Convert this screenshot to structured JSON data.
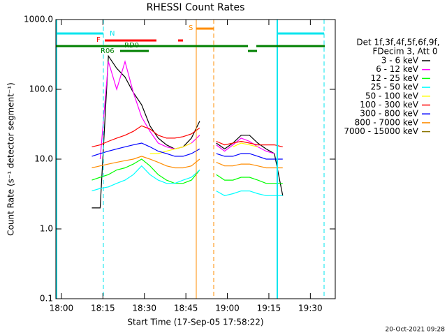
{
  "chart_data": {
    "type": "line",
    "title": "RHESSI Count Rates",
    "xlabel": "Start Time (17-Sep-05 17:58:22)",
    "ylabel": "Count Rate (s⁻¹ detector segment⁻¹)",
    "log_y": true,
    "x": [
      "18:11",
      "18:14",
      "18:17",
      "18:20",
      "18:23",
      "18:26",
      "18:29",
      "18:32",
      "18:35",
      "18:38",
      "18:41",
      "18:44",
      "18:47",
      "18:50",
      "18:53",
      "18:56",
      "18:59",
      "19:02",
      "19:05",
      "19:08",
      "19:11",
      "19:14",
      "19:17",
      "19:20"
    ],
    "xlim": [
      "17:58",
      "19:39"
    ],
    "xticks": [
      "18:00",
      "18:15",
      "18:30",
      "18:45",
      "19:00",
      "19:15",
      "19:30"
    ],
    "ylim": [
      0.1,
      1000
    ],
    "yticks": [
      {
        "value": 0.1,
        "label": "0.1"
      },
      {
        "value": 1,
        "label": "1.0"
      },
      {
        "value": 10,
        "label": "10.0"
      },
      {
        "value": 100,
        "label": "100.0"
      },
      {
        "value": 1000,
        "label": "1000.0"
      }
    ],
    "legend_header": [
      "Det 1f,3f,4f,5f,6f,9f,",
      "FDecim 3, Att 0"
    ],
    "series": [
      {
        "name": "3 - 6 keV",
        "color": "#000000",
        "values": [
          2,
          2,
          300,
          200,
          150,
          90,
          60,
          30,
          20,
          16,
          14,
          15,
          20,
          35,
          null,
          17,
          14,
          17,
          22,
          22,
          17,
          14,
          12,
          3
        ]
      },
      {
        "name": "6 - 12 keV",
        "color": "#ff00ff",
        "values": [
          null,
          10,
          250,
          100,
          250,
          90,
          40,
          25,
          17,
          15,
          14,
          15,
          17,
          22,
          null,
          16,
          13,
          16,
          20,
          18,
          15,
          13,
          12,
          null
        ]
      },
      {
        "name": "12 - 25 keV",
        "color": "#00ff00",
        "values": [
          5,
          5.5,
          6,
          7,
          7.5,
          8.5,
          10,
          8,
          6,
          5,
          4.5,
          4.5,
          5,
          7,
          null,
          6,
          5,
          5,
          5.5,
          5.5,
          5,
          4.5,
          4.5,
          4.5
        ]
      },
      {
        "name": "25 - 50 keV",
        "color": "#00ffff",
        "values": [
          3.5,
          3.8,
          4,
          4.5,
          5,
          6,
          8,
          6,
          5,
          4.5,
          4.5,
          5,
          5.5,
          7,
          null,
          3.5,
          3,
          3.2,
          3.5,
          3.5,
          3.2,
          3,
          3,
          3
        ]
      },
      {
        "name": "50 - 100 keV",
        "color": "#ffff00",
        "values": [
          null,
          null,
          null,
          null,
          null,
          null,
          null,
          12,
          12,
          13,
          14,
          15,
          17,
          null,
          null,
          null,
          null,
          15,
          17,
          16,
          15,
          null,
          null,
          null
        ]
      },
      {
        "name": "100 - 300 keV",
        "color": "#ff0000",
        "values": [
          15,
          16,
          18,
          20,
          22,
          25,
          30,
          27,
          22,
          20,
          20,
          21,
          23,
          28,
          null,
          18,
          16,
          17,
          18,
          17,
          16,
          16,
          16,
          15
        ]
      },
      {
        "name": "300 - 800 keV",
        "color": "#0000ff",
        "values": [
          11,
          12,
          13,
          14,
          15,
          16,
          17,
          15,
          13,
          12,
          11,
          11,
          12,
          14,
          null,
          12,
          11,
          11,
          12,
          12,
          11,
          10,
          10,
          10
        ]
      },
      {
        "name": "800 - 7000 keV",
        "color": "#ff8c00",
        "values": [
          7.5,
          8,
          8.5,
          9,
          9.5,
          10,
          11,
          10,
          9,
          8,
          7.5,
          7.5,
          8,
          10,
          null,
          9,
          8,
          8,
          8.5,
          8.5,
          8,
          7.5,
          7.5,
          7.5
        ]
      },
      {
        "name": "7000 - 15000 keV",
        "color": "#8b7500",
        "values": [
          null,
          null,
          null,
          null,
          null,
          null,
          null,
          null,
          null,
          null,
          null,
          null,
          null,
          null,
          null,
          null,
          null,
          null,
          null,
          null,
          null,
          null,
          null,
          null
        ]
      }
    ],
    "flags": [
      "N",
      "S",
      "F",
      "RD0",
      "R06"
    ],
    "footer": "20-Oct-2021 09:28"
  }
}
